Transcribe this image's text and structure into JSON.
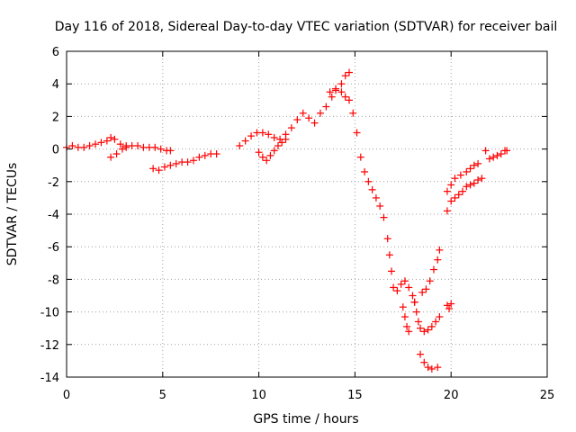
{
  "chart_data": {
    "type": "scatter",
    "title": "Day 116 of 2018, Sidereal Day-to-day VTEC variation (SDTVAR) for receiver bail",
    "xlabel": "GPS time / hours",
    "ylabel": "SDTVAR / TECUs",
    "xlim": [
      0,
      25
    ],
    "ylim": [
      -14,
      6
    ],
    "xticks": [
      0,
      5,
      10,
      15,
      20,
      25
    ],
    "yticks": [
      -14,
      -12,
      -10,
      -8,
      -6,
      -4,
      -2,
      0,
      2,
      4,
      6
    ],
    "grid": true,
    "marker": "plus",
    "color": "#ff0000",
    "series": [
      {
        "points": [
          [
            0.0,
            0.1
          ],
          [
            0.3,
            0.2
          ],
          [
            0.6,
            0.1
          ],
          [
            0.9,
            0.1
          ],
          [
            1.2,
            0.2
          ],
          [
            1.5,
            0.3
          ],
          [
            1.8,
            0.4
          ],
          [
            2.1,
            0.5
          ],
          [
            2.3,
            0.7
          ],
          [
            2.5,
            0.6
          ],
          [
            2.8,
            0.3
          ],
          [
            3.1,
            0.2
          ],
          [
            3.4,
            0.2
          ],
          [
            3.7,
            0.2
          ],
          [
            4.0,
            0.1
          ],
          [
            4.3,
            0.1
          ],
          [
            4.6,
            0.1
          ],
          [
            4.9,
            0.0
          ],
          [
            5.2,
            -0.1
          ],
          [
            5.4,
            -0.1
          ]
        ]
      },
      {
        "points": [
          [
            2.3,
            -0.5
          ],
          [
            2.6,
            -0.3
          ],
          [
            2.9,
            0.0
          ],
          [
            3.1,
            0.1
          ]
        ]
      },
      {
        "points": [
          [
            4.5,
            -1.2
          ],
          [
            4.8,
            -1.3
          ],
          [
            5.1,
            -1.1
          ],
          [
            5.4,
            -1.0
          ],
          [
            5.7,
            -0.9
          ],
          [
            6.0,
            -0.8
          ],
          [
            6.3,
            -0.8
          ],
          [
            6.6,
            -0.7
          ],
          [
            6.9,
            -0.5
          ],
          [
            7.2,
            -0.4
          ],
          [
            7.5,
            -0.3
          ],
          [
            7.8,
            -0.3
          ]
        ]
      },
      {
        "points": [
          [
            9.0,
            0.2
          ],
          [
            9.3,
            0.5
          ],
          [
            9.6,
            0.8
          ],
          [
            9.9,
            1.0
          ],
          [
            10.2,
            1.0
          ],
          [
            10.5,
            0.9
          ],
          [
            10.8,
            0.7
          ],
          [
            11.1,
            0.6
          ],
          [
            11.4,
            0.9
          ],
          [
            11.7,
            1.3
          ],
          [
            12.0,
            1.8
          ],
          [
            12.3,
            2.2
          ],
          [
            12.6,
            1.9
          ],
          [
            12.9,
            1.6
          ],
          [
            13.2,
            2.2
          ],
          [
            13.5,
            2.6
          ],
          [
            13.8,
            3.2
          ],
          [
            14.0,
            3.7
          ],
          [
            14.3,
            4.0
          ],
          [
            14.5,
            4.5
          ],
          [
            14.7,
            4.7
          ]
        ]
      },
      {
        "points": [
          [
            10.0,
            -0.2
          ],
          [
            10.2,
            -0.5
          ],
          [
            10.4,
            -0.7
          ],
          [
            10.6,
            -0.4
          ],
          [
            10.8,
            -0.1
          ],
          [
            11.0,
            0.2
          ],
          [
            11.2,
            0.4
          ],
          [
            11.4,
            0.6
          ]
        ]
      },
      {
        "points": [
          [
            13.7,
            3.5
          ],
          [
            14.0,
            3.6
          ],
          [
            14.3,
            3.5
          ],
          [
            14.5,
            3.2
          ],
          [
            14.7,
            3.0
          ],
          [
            14.9,
            2.2
          ],
          [
            15.1,
            1.0
          ],
          [
            15.3,
            -0.5
          ],
          [
            15.5,
            -1.4
          ],
          [
            15.7,
            -2.0
          ],
          [
            15.9,
            -2.5
          ],
          [
            16.1,
            -3.0
          ],
          [
            16.3,
            -3.5
          ],
          [
            16.5,
            -4.2
          ],
          [
            16.7,
            -5.5
          ],
          [
            16.8,
            -6.5
          ],
          [
            16.9,
            -7.5
          ],
          [
            17.0,
            -8.5
          ],
          [
            17.2,
            -8.7
          ],
          [
            17.4,
            -8.3
          ],
          [
            17.6,
            -8.1
          ],
          [
            17.8,
            -8.5
          ],
          [
            18.0,
            -9.0
          ],
          [
            18.1,
            -9.4
          ]
        ]
      },
      {
        "points": [
          [
            17.5,
            -9.7
          ],
          [
            17.6,
            -10.3
          ],
          [
            17.7,
            -10.9
          ],
          [
            17.8,
            -11.2
          ]
        ]
      },
      {
        "points": [
          [
            18.1,
            -9.4
          ],
          [
            18.2,
            -10.0
          ],
          [
            18.3,
            -10.6
          ],
          [
            18.4,
            -11.0
          ],
          [
            18.6,
            -11.2
          ],
          [
            18.8,
            -11.1
          ],
          [
            19.0,
            -10.9
          ],
          [
            19.2,
            -10.6
          ],
          [
            19.4,
            -10.3
          ]
        ]
      },
      {
        "points": [
          [
            18.5,
            -8.8
          ],
          [
            18.7,
            -8.6
          ],
          [
            18.9,
            -8.1
          ],
          [
            19.1,
            -7.4
          ],
          [
            19.3,
            -6.8
          ],
          [
            19.4,
            -6.2
          ]
        ]
      },
      {
        "points": [
          [
            18.4,
            -12.6
          ],
          [
            18.6,
            -13.1
          ],
          [
            18.8,
            -13.4
          ],
          [
            19.0,
            -13.5
          ],
          [
            19.3,
            -13.4
          ]
        ]
      },
      {
        "points": [
          [
            19.8,
            -9.6
          ],
          [
            19.9,
            -9.8
          ],
          [
            20.0,
            -9.5
          ]
        ]
      },
      {
        "points": [
          [
            19.8,
            -3.8
          ],
          [
            20.0,
            -3.2
          ],
          [
            20.2,
            -3.0
          ],
          [
            20.4,
            -2.8
          ],
          [
            20.6,
            -2.6
          ],
          [
            20.8,
            -2.3
          ],
          [
            21.0,
            -2.2
          ],
          [
            21.2,
            -2.1
          ],
          [
            21.4,
            -1.9
          ],
          [
            21.6,
            -1.8
          ]
        ]
      },
      {
        "points": [
          [
            19.8,
            -2.6
          ],
          [
            20.0,
            -2.2
          ],
          [
            20.2,
            -1.8
          ],
          [
            20.5,
            -1.6
          ],
          [
            20.8,
            -1.4
          ],
          [
            21.0,
            -1.2
          ],
          [
            21.2,
            -1.0
          ],
          [
            21.4,
            -0.9
          ]
        ]
      },
      {
        "points": [
          [
            21.8,
            -0.1
          ],
          [
            22.0,
            -0.6
          ],
          [
            22.2,
            -0.5
          ],
          [
            22.4,
            -0.4
          ],
          [
            22.6,
            -0.3
          ],
          [
            22.8,
            -0.1
          ],
          [
            22.9,
            -0.1
          ]
        ]
      }
    ]
  }
}
